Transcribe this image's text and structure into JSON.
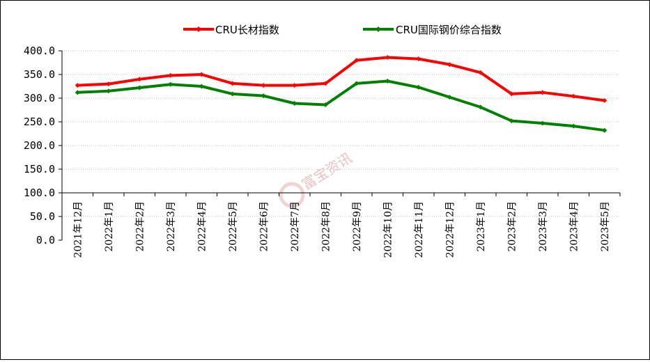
{
  "chart_data": {
    "type": "line",
    "title": "",
    "xlabel": "",
    "ylabel": "",
    "ylim": [
      0,
      400
    ],
    "ytick_step": 50,
    "ytick_labels": [
      "0.0",
      "50.0",
      "100.0",
      "150.0",
      "200.0",
      "250.0",
      "300.0",
      "350.0",
      "400.0"
    ],
    "grid": "horizontal-dotted",
    "legend_position": "top-center",
    "categories": [
      "2021年12月",
      "2022年1月",
      "2022年2月",
      "2022年3月",
      "2022年4月",
      "2022年5月",
      "2022年6月",
      "2022年7月",
      "2022年8月",
      "2022年9月",
      "2022年10月",
      "2022年11月",
      "2022年12月",
      "2023年1月",
      "2023年2月",
      "2023年3月",
      "2023年4月",
      "2023年5月"
    ],
    "series": [
      {
        "name": "CRU长材指数",
        "color": "#ff0000",
        "values": [
          327,
          330,
          340,
          348,
          350,
          331,
          327,
          327,
          331,
          380,
          386,
          383,
          371,
          354,
          309,
          312,
          304,
          295
        ]
      },
      {
        "name": "CRU国际钢价综合指数",
        "color": "#008000",
        "values": [
          312,
          315,
          322,
          329,
          325,
          309,
          305,
          289,
          286,
          331,
          336,
          323,
          302,
          281,
          252,
          247,
          241,
          232
        ]
      }
    ],
    "watermark": "富宝资讯"
  }
}
